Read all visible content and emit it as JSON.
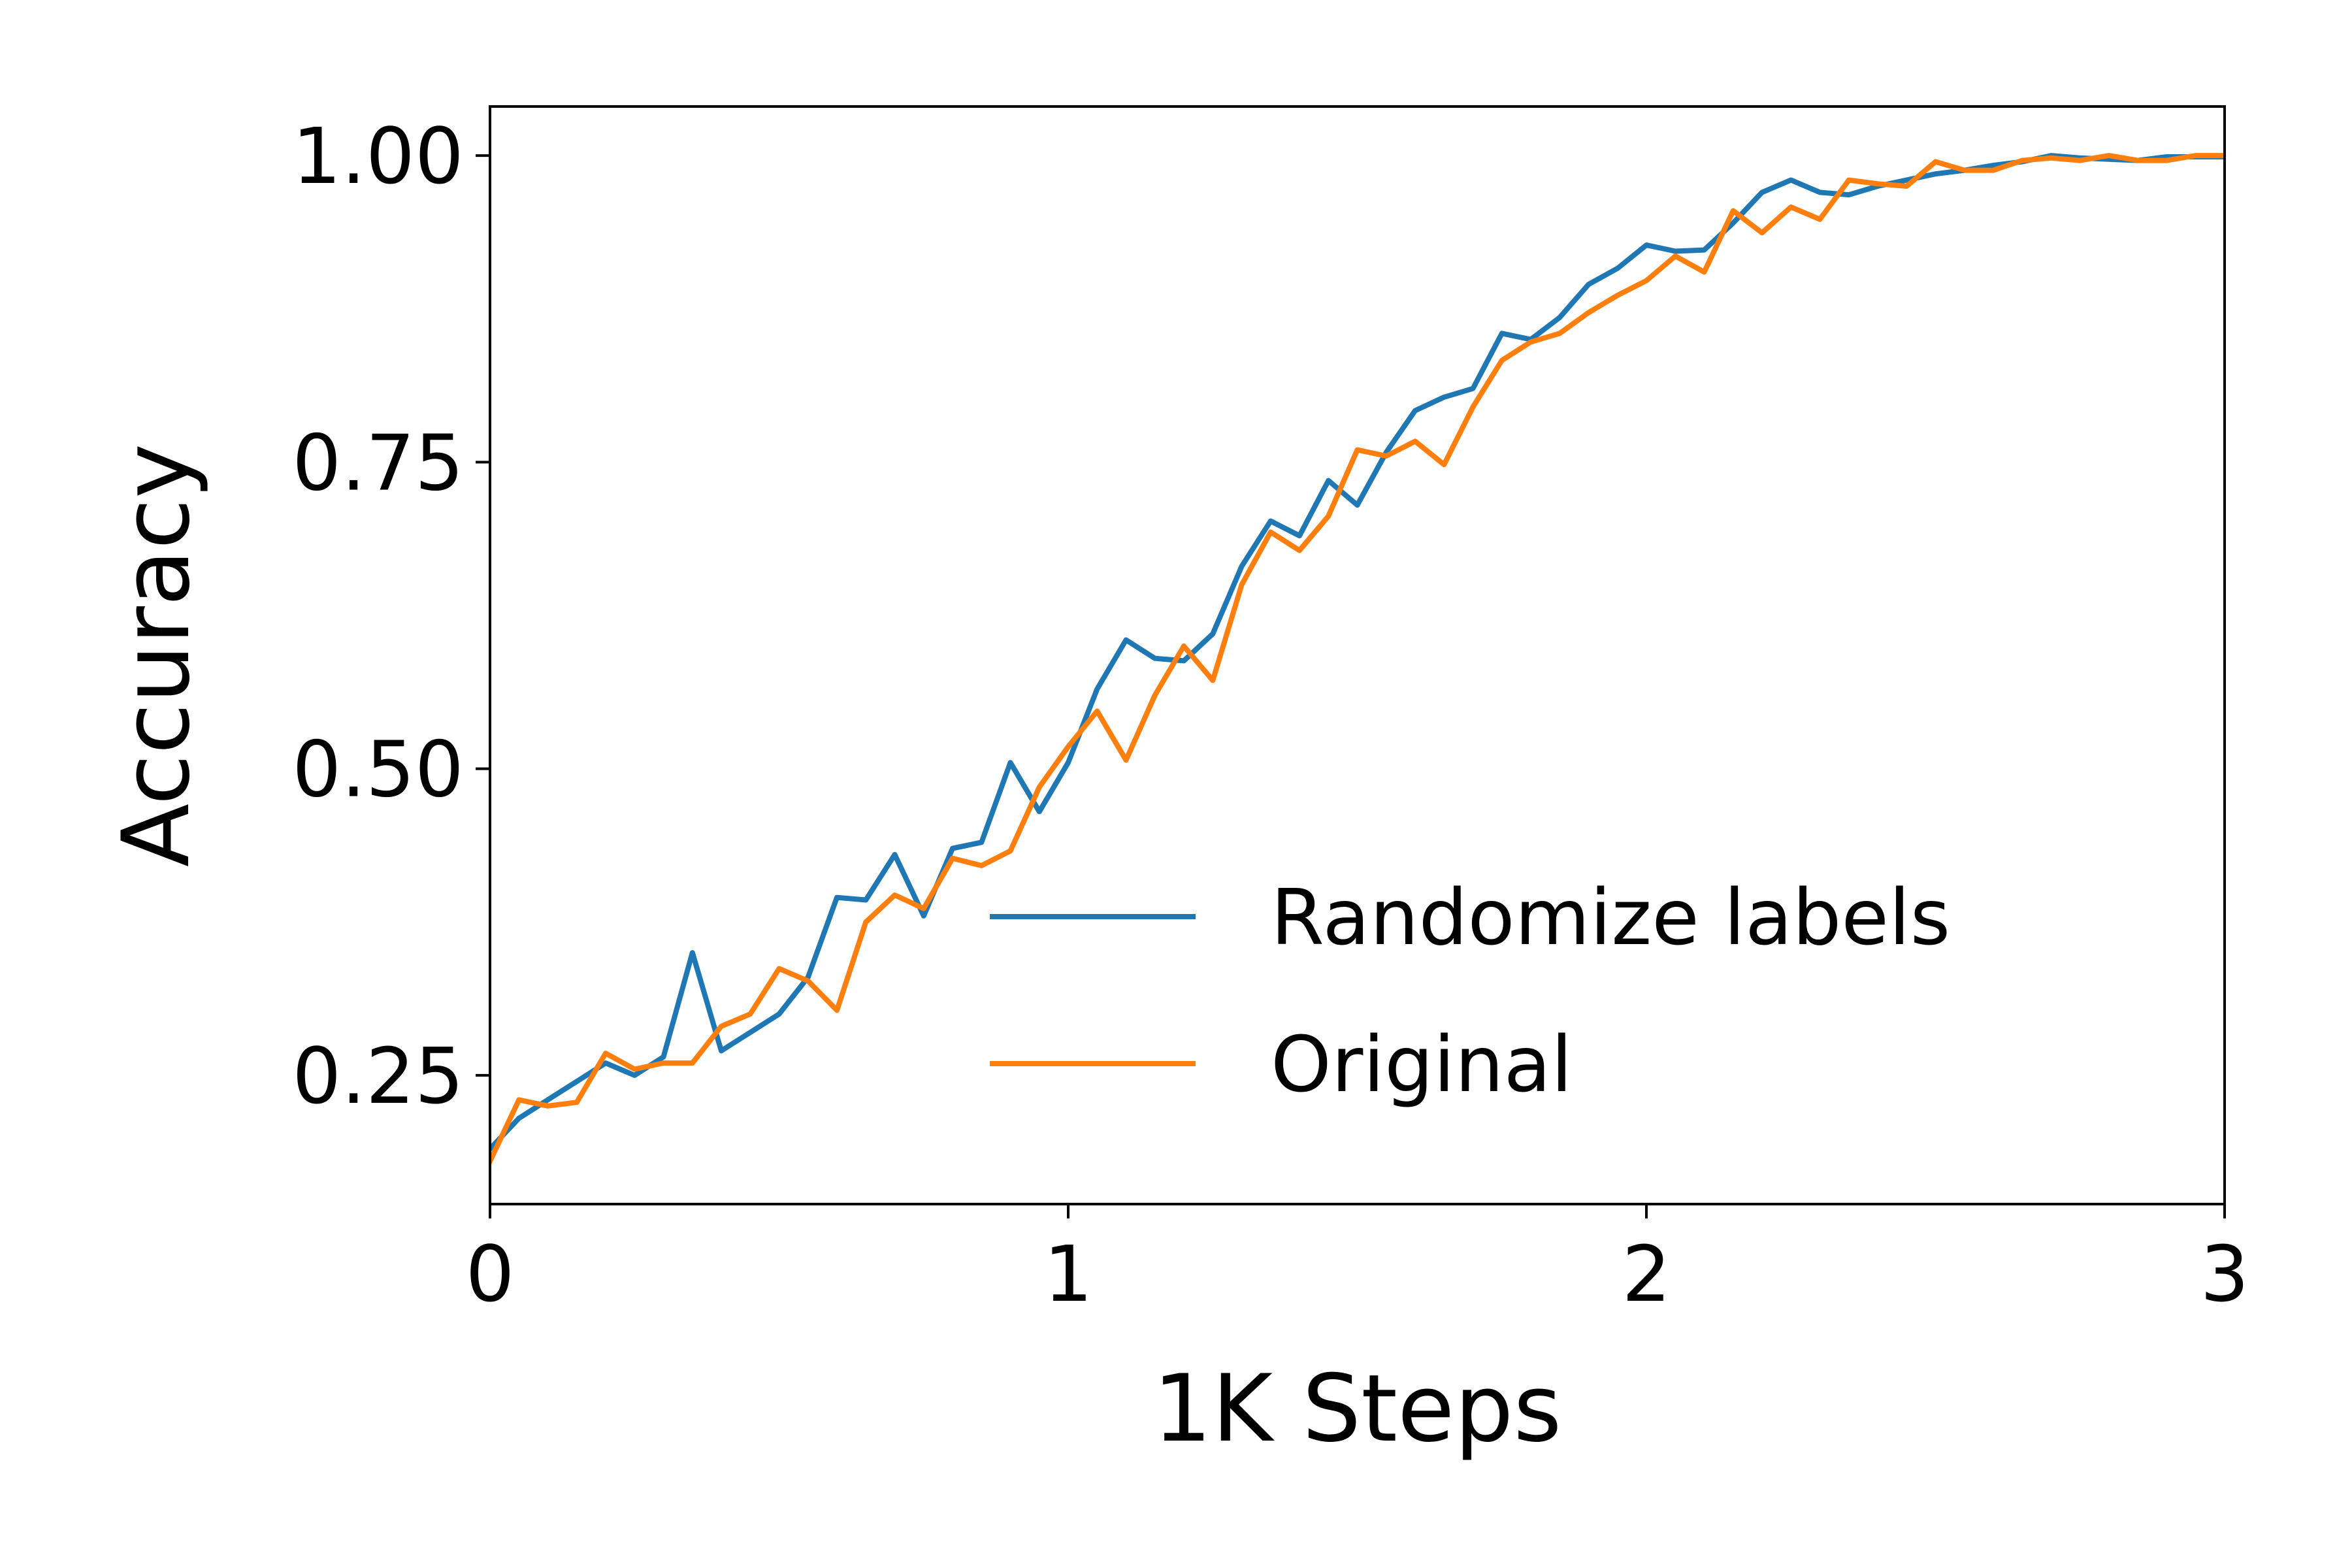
{
  "chart_data": {
    "type": "line",
    "title": "",
    "xlabel": "1K Steps",
    "ylabel": "Accuracy",
    "xlim": [
      0,
      3
    ],
    "ylim": [
      0.145,
      1.04
    ],
    "xticks": [
      0,
      1,
      2,
      3
    ],
    "xtick_labels": [
      "0",
      "1",
      "2",
      "3"
    ],
    "yticks": [
      0.25,
      0.5,
      0.75,
      1.0
    ],
    "ytick_labels": [
      "0.25",
      "0.50",
      "0.75",
      "1.00"
    ],
    "grid": false,
    "legend_position": "bottom-right",
    "x": [
      0.0,
      0.05,
      0.1,
      0.15,
      0.2,
      0.25,
      0.3,
      0.35,
      0.4,
      0.45,
      0.5,
      0.55,
      0.6,
      0.65,
      0.7,
      0.75,
      0.8,
      0.85,
      0.9,
      0.95,
      1.0,
      1.05,
      1.1,
      1.15,
      1.2,
      1.25,
      1.3,
      1.35,
      1.4,
      1.45,
      1.5,
      1.55,
      1.6,
      1.65,
      1.7,
      1.75,
      1.8,
      1.85,
      1.9,
      1.95,
      2.0,
      2.05,
      2.1,
      2.15,
      2.2,
      2.25,
      2.3,
      2.35,
      2.4,
      2.45,
      2.5,
      2.55,
      2.6,
      2.65,
      2.7,
      2.75,
      2.8,
      2.85,
      2.9,
      2.95,
      3.0
    ],
    "series": [
      {
        "name": "Randomize labels",
        "color": "#1f77b4",
        "values": [
          0.19,
          0.215,
          0.23,
          0.245,
          0.26,
          0.25,
          0.265,
          0.35,
          0.27,
          0.285,
          0.3,
          0.33,
          0.395,
          0.393,
          0.43,
          0.38,
          0.435,
          0.44,
          0.505,
          0.465,
          0.505,
          0.565,
          0.605,
          0.59,
          0.588,
          0.61,
          0.665,
          0.702,
          0.69,
          0.735,
          0.715,
          0.758,
          0.792,
          0.803,
          0.81,
          0.855,
          0.85,
          0.868,
          0.895,
          0.908,
          0.927,
          0.922,
          0.923,
          0.945,
          0.97,
          0.98,
          0.97,
          0.968,
          0.975,
          0.98,
          0.985,
          0.988,
          0.992,
          0.995,
          1.0,
          0.998,
          0.997,
          0.996,
          0.999,
          0.999,
          0.999
        ]
      },
      {
        "name": "Original",
        "color": "#ff7f0e",
        "values": [
          0.18,
          0.23,
          0.225,
          0.228,
          0.268,
          0.255,
          0.26,
          0.26,
          0.29,
          0.3,
          0.337,
          0.327,
          0.303,
          0.375,
          0.397,
          0.386,
          0.427,
          0.421,
          0.433,
          0.485,
          0.518,
          0.547,
          0.507,
          0.56,
          0.6,
          0.572,
          0.65,
          0.693,
          0.678,
          0.706,
          0.76,
          0.755,
          0.767,
          0.748,
          0.795,
          0.833,
          0.848,
          0.855,
          0.872,
          0.886,
          0.898,
          0.918,
          0.905,
          0.955,
          0.937,
          0.958,
          0.948,
          0.98,
          0.977,
          0.975,
          0.995,
          0.988,
          0.988,
          0.996,
          0.998,
          0.996,
          1.0,
          0.996,
          0.996,
          1.0,
          1.0
        ]
      }
    ]
  }
}
